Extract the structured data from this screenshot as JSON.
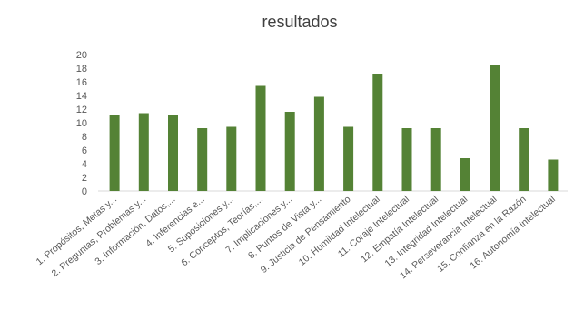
{
  "chart_data": {
    "type": "bar",
    "title": "resultados",
    "xlabel": "",
    "ylabel": "",
    "ylim": [
      0,
      20
    ],
    "yticks": [
      0,
      2,
      4,
      6,
      8,
      10,
      12,
      14,
      16,
      18,
      20
    ],
    "grid": false,
    "legend": "none",
    "bar_color": "#548235",
    "categories": [
      "1. Propósitos, Metas y...",
      "2. Preguntas, Problemas y...",
      "3. Información, Datos,...",
      "4. Inferencias e...",
      "5. Suposiciones y...",
      "6. Conceptos, Teorías,...",
      "7. Implicaciones y...",
      "8. Puntos de Vista y...",
      "9. Justicia de Pensamiento",
      "10. Humildad Intelectual",
      "11. Coraje Intelectual",
      "12. Empatía Intelectual",
      "13. Integridad Intelectual",
      "14. Perseverancia Intelectual",
      "15. Confianza en la Razón",
      "16. Autonomía Intelectual"
    ],
    "values": [
      11.2,
      11.4,
      11.2,
      9.2,
      9.4,
      15.4,
      11.6,
      13.8,
      9.4,
      17.2,
      9.2,
      9.2,
      4.8,
      18.4,
      9.2,
      4.6
    ]
  }
}
